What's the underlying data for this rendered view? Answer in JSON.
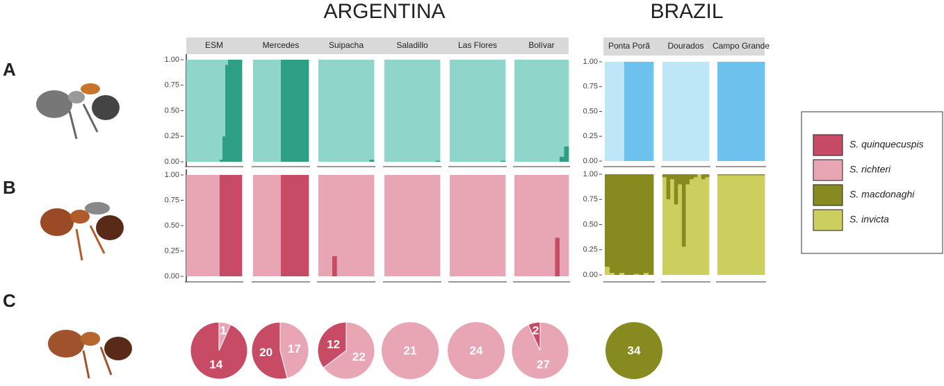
{
  "country_labels": [
    "ARGENTINA",
    "BRAZIL"
  ],
  "panel_letters": [
    "A",
    "B",
    "C"
  ],
  "legend": {
    "series": [
      {
        "name": "S. quinquecuspis",
        "color": "#c84b65"
      },
      {
        "name": "S. richteri",
        "color": "#e8a5b3"
      },
      {
        "name": "S. macdonaghi",
        "color": "#878a1e"
      },
      {
        "name": "S. invicta",
        "color": "#cccf5e"
      }
    ]
  },
  "chart_data": [
    {
      "type": "structure",
      "ylim": [
        0,
        1
      ],
      "yticks": [
        {
          "value": 0,
          "label": "0.00"
        },
        {
          "value": 0.25,
          "label": "0.25"
        },
        {
          "value": 0.5,
          "label": "0.50"
        },
        {
          "value": 0.75,
          "label": "0.75"
        },
        {
          "value": 1,
          "label": "1.00"
        }
      ],
      "colors": [
        "#2e9e85",
        "#8fd5c9"
      ],
      "populations": [
        {
          "name": "ESM",
          "values": [
            0,
            0,
            0,
            0,
            0,
            0,
            0,
            0,
            0,
            0,
            0,
            0,
            0.02,
            0.25,
            0.95,
            1,
            1,
            1,
            1,
            1
          ]
        },
        {
          "name": "Mercedes",
          "values": [
            0,
            0,
            0,
            0,
            0,
            0,
            0,
            0,
            0,
            0,
            1,
            1,
            1,
            1,
            1,
            1,
            1,
            1,
            1,
            1
          ]
        },
        {
          "name": "Suipacha",
          "values": [
            0,
            0,
            0,
            0,
            0,
            0,
            0,
            0,
            0,
            0,
            0,
            0.02
          ]
        },
        {
          "name": "Saladillo",
          "values": [
            0,
            0,
            0,
            0,
            0,
            0,
            0,
            0,
            0,
            0,
            0,
            0.01
          ]
        },
        {
          "name": "Las Flores",
          "values": [
            0,
            0,
            0,
            0,
            0,
            0,
            0,
            0,
            0,
            0,
            0,
            0.01
          ]
        },
        {
          "name": "Bolívar",
          "values": [
            0,
            0,
            0,
            0,
            0,
            0,
            0,
            0,
            0,
            0,
            0.05,
            0.15
          ]
        }
      ]
    },
    {
      "type": "structure",
      "ylim": [
        0,
        1
      ],
      "yticks": [
        {
          "value": 0,
          "label": "0.00"
        },
        {
          "value": 0.25,
          "label": "0.25"
        },
        {
          "value": 0.5,
          "label": "0.50"
        },
        {
          "value": 0.75,
          "label": "0.75"
        },
        {
          "value": 1,
          "label": "1.00"
        }
      ],
      "colors": [
        "#6ec3ee",
        "#bde6f7"
      ],
      "populations": [
        {
          "name": "Ponta Porã",
          "values": [
            0,
            0,
            0,
            0,
            1,
            1,
            1,
            1,
            1,
            1
          ]
        },
        {
          "name": "Dourados",
          "values": [
            0,
            0,
            0,
            0,
            0,
            0,
            0,
            0,
            0,
            0
          ]
        },
        {
          "name": "Campo Grande",
          "values": [
            1,
            1,
            1,
            1,
            1,
            1,
            1,
            1,
            1,
            1
          ]
        }
      ]
    },
    {
      "type": "structure",
      "ylim": [
        0,
        1
      ],
      "yticks": [
        {
          "value": 0,
          "label": "0.00"
        },
        {
          "value": 0.25,
          "label": "0.25"
        },
        {
          "value": 0.5,
          "label": "0.50"
        },
        {
          "value": 0.75,
          "label": "0.75"
        },
        {
          "value": 1,
          "label": "1.00"
        }
      ],
      "colors": [
        "#c84b65",
        "#e8a5b3"
      ],
      "populations": [
        {
          "values": [
            0,
            0,
            0,
            0,
            0,
            0,
            0,
            0,
            0,
            0,
            0,
            0,
            1,
            1,
            1,
            1,
            1,
            1,
            1,
            1
          ]
        },
        {
          "values": [
            0,
            0,
            0,
            0,
            0,
            0,
            0,
            0,
            0,
            0,
            1,
            1,
            1,
            1,
            1,
            1,
            1,
            1,
            1,
            1
          ]
        },
        {
          "values": [
            0,
            0,
            0,
            0.2,
            0,
            0,
            0,
            0,
            0,
            0,
            0,
            0
          ]
        },
        {
          "values": [
            0,
            0,
            0,
            0,
            0,
            0,
            0,
            0,
            0,
            0,
            0,
            0
          ]
        },
        {
          "values": [
            0,
            0,
            0,
            0,
            0,
            0,
            0,
            0,
            0,
            0,
            0,
            0
          ]
        },
        {
          "values": [
            0,
            0,
            0,
            0,
            0,
            0,
            0,
            0,
            0,
            0.38,
            0,
            0
          ]
        }
      ]
    },
    {
      "type": "structure",
      "ylim": [
        0,
        1
      ],
      "yticks": [
        {
          "value": 0,
          "label": "0.00"
        },
        {
          "value": 0.25,
          "label": "0.25"
        },
        {
          "value": 0.5,
          "label": "0.50"
        },
        {
          "value": 0.75,
          "label": "0.75"
        },
        {
          "value": 1,
          "label": "1.00"
        }
      ],
      "colors": [
        "#cccf5e",
        "#878a1e"
      ],
      "populations": [
        {
          "values": [
            0.08,
            0.02,
            0,
            0.02,
            0,
            0,
            0.01,
            0,
            0.02,
            0
          ]
        },
        {
          "values": [
            0.97,
            0.75,
            0.95,
            0.7,
            0.9,
            0.28,
            0.9,
            0.95,
            0.97,
            1,
            0.95,
            0.97
          ]
        },
        {
          "values": [
            0.99,
            0.99,
            0.99,
            0.99,
            0.99,
            0.99,
            0.99,
            0.99,
            0.99,
            0.99
          ]
        }
      ]
    },
    {
      "type": "pie",
      "populations": [
        {
          "values": [
            14,
            1
          ],
          "colors": [
            "#c84b65",
            "#e8a5b3"
          ]
        },
        {
          "values": [
            20,
            17
          ],
          "colors": [
            "#c84b65",
            "#e8a5b3"
          ]
        },
        {
          "values": [
            12,
            22
          ],
          "colors": [
            "#c84b65",
            "#e8a5b3"
          ]
        },
        {
          "values": [
            21
          ],
          "colors": [
            "#e8a5b3"
          ]
        },
        {
          "values": [
            24
          ],
          "colors": [
            "#e8a5b3"
          ]
        },
        {
          "values": [
            2,
            27
          ],
          "colors": [
            "#c84b65",
            "#e8a5b3"
          ]
        },
        {
          "values": [
            34
          ],
          "colors": [
            "#878a1e"
          ]
        }
      ]
    }
  ]
}
